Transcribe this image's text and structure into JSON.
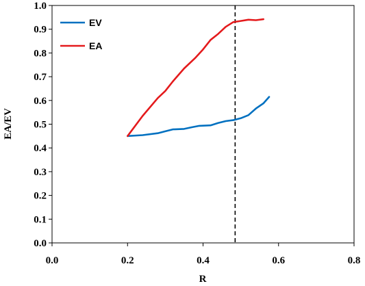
{
  "chart_data": {
    "type": "line",
    "title": "",
    "xlabel": "R",
    "ylabel": "EA/EV",
    "xlim": [
      0,
      0.8
    ],
    "ylim": [
      0,
      1.0
    ],
    "x_ticks": [
      "0.0",
      "0.2",
      "0.4",
      "0.6",
      "0.8"
    ],
    "y_ticks": [
      "0.0",
      "0.1",
      "0.2",
      "0.3",
      "0.4",
      "0.5",
      "0.6",
      "0.7",
      "0.8",
      "0.9",
      "1.0"
    ],
    "grid": false,
    "legend_position": "top-left",
    "vertical_reference_line": {
      "x": 0.485,
      "style": "dashed",
      "color": "#000000"
    },
    "series": [
      {
        "name": "EV",
        "color": "#0070C0",
        "x": [
          0.2,
          0.24,
          0.28,
          0.3,
          0.32,
          0.35,
          0.37,
          0.39,
          0.42,
          0.44,
          0.46,
          0.48,
          0.5,
          0.52,
          0.54,
          0.56,
          0.575
        ],
        "y": [
          0.45,
          0.454,
          0.462,
          0.47,
          0.478,
          0.48,
          0.487,
          0.493,
          0.495,
          0.505,
          0.513,
          0.517,
          0.525,
          0.538,
          0.566,
          0.588,
          0.615
        ]
      },
      {
        "name": "EA",
        "color": "#E41A1C",
        "x": [
          0.2,
          0.24,
          0.28,
          0.3,
          0.32,
          0.35,
          0.38,
          0.4,
          0.42,
          0.44,
          0.46,
          0.48,
          0.5,
          0.52,
          0.54,
          0.56
        ],
        "y": [
          0.45,
          0.535,
          0.61,
          0.64,
          0.68,
          0.735,
          0.78,
          0.815,
          0.855,
          0.88,
          0.91,
          0.93,
          0.935,
          0.94,
          0.938,
          0.942
        ]
      }
    ]
  }
}
